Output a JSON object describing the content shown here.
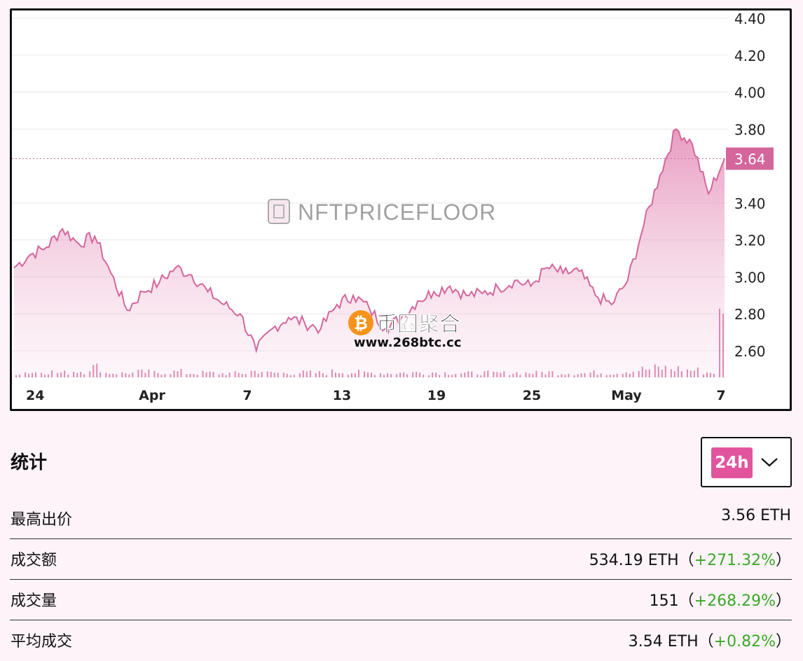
{
  "chart_data": {
    "type": "area",
    "x_tick_labels": [
      "24",
      "Apr",
      "7",
      "13",
      "19",
      "25",
      "May",
      "7"
    ],
    "y_tick_labels": [
      "2.60",
      "2.80",
      "3.00",
      "3.20",
      "3.40",
      "3.80",
      "4.00",
      "4.20",
      "4.40"
    ],
    "ylim": [
      2.45,
      4.44
    ],
    "current_value": 3.64,
    "current_value_label": "3.64",
    "line_color": "#d4669b",
    "watermark": "NFTPRICEFLOOR",
    "x": [
      "Mar 24",
      "Mar 25",
      "Mar 26",
      "Mar 27",
      "Mar 28",
      "Mar 29",
      "Mar 30",
      "Mar 31",
      "Apr 1",
      "Apr 2",
      "Apr 3",
      "Apr 4",
      "Apr 5",
      "Apr 6",
      "Apr 7",
      "Apr 8",
      "Apr 9",
      "Apr 10",
      "Apr 11",
      "Apr 12",
      "Apr 13",
      "Apr 14",
      "Apr 15",
      "Apr 16",
      "Apr 17",
      "Apr 18",
      "Apr 19",
      "Apr 20",
      "Apr 21",
      "Apr 22",
      "Apr 23",
      "Apr 24",
      "Apr 25",
      "Apr 26",
      "Apr 27",
      "Apr 28",
      "Apr 29",
      "Apr 30",
      "May 1",
      "May 2",
      "May 3",
      "May 4",
      "May 5",
      "May 6",
      "May 7"
    ],
    "values": [
      3.05,
      3.12,
      3.16,
      3.26,
      3.18,
      3.22,
      3.02,
      2.82,
      2.92,
      2.97,
      3.05,
      3.01,
      2.92,
      2.85,
      2.8,
      2.6,
      2.72,
      2.78,
      2.75,
      2.72,
      2.85,
      2.9,
      2.83,
      2.72,
      2.78,
      2.87,
      2.92,
      2.95,
      2.9,
      2.91,
      2.94,
      2.98,
      2.95,
      3.05,
      3.02,
      3.03,
      2.9,
      2.85,
      2.98,
      3.28,
      3.55,
      3.8,
      3.72,
      3.45,
      3.64
    ],
    "volume": [
      0.05,
      0.08,
      0.1,
      0.07,
      0.12,
      0.25,
      0.06,
      0.05,
      0.09,
      0.07,
      0.1,
      0.05,
      0.06,
      0.04,
      0.05,
      0.12,
      0.06,
      0.05,
      0.07,
      0.06,
      0.1,
      0.08,
      0.06,
      0.05,
      0.06,
      0.07,
      0.08,
      0.06,
      0.05,
      0.06,
      0.05,
      0.07,
      0.06,
      0.08,
      0.06,
      0.05,
      0.07,
      0.06,
      0.12,
      0.18,
      0.22,
      0.2,
      0.15,
      0.08,
      0.6
    ]
  },
  "watermark2": {
    "name": "币圈聚合",
    "url": "www.268btc.cc",
    "symbol": "₿"
  },
  "stats": {
    "title": "统计",
    "period": {
      "selected": "24h"
    },
    "rows": [
      {
        "label": "最高出价",
        "value": "3.56 ETH",
        "change": ""
      },
      {
        "label": "成交额",
        "value": "534.19 ETH（",
        "change": "+271.32%"
      },
      {
        "label": "成交量",
        "value": "151（",
        "change": "+268.29%"
      },
      {
        "label": "平均成交",
        "value": "3.54 ETH（",
        "change": "+0.82%"
      }
    ]
  }
}
